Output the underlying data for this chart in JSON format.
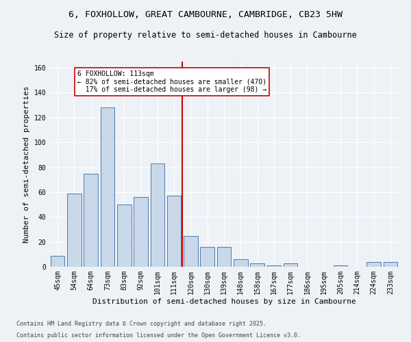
{
  "title": "6, FOXHOLLOW, GREAT CAMBOURNE, CAMBRIDGE, CB23 5HW",
  "subtitle": "Size of property relative to semi-detached houses in Cambourne",
  "xlabel": "Distribution of semi-detached houses by size in Cambourne",
  "ylabel": "Number of semi-detached properties",
  "categories": [
    "45sqm",
    "54sqm",
    "64sqm",
    "73sqm",
    "83sqm",
    "92sqm",
    "101sqm",
    "111sqm",
    "120sqm",
    "130sqm",
    "139sqm",
    "148sqm",
    "158sqm",
    "167sqm",
    "177sqm",
    "186sqm",
    "195sqm",
    "205sqm",
    "214sqm",
    "224sqm",
    "233sqm"
  ],
  "values": [
    9,
    59,
    75,
    128,
    50,
    56,
    83,
    57,
    25,
    16,
    16,
    6,
    3,
    1,
    3,
    0,
    0,
    1,
    0,
    4,
    4
  ],
  "bar_color": "#c8d8e8",
  "bar_edge_color": "#4a7ab5",
  "reference_line_x": 7.5,
  "reference_label": "6 FOXHOLLOW: 113sqm",
  "pct_smaller": 82,
  "n_smaller": 470,
  "pct_larger": 17,
  "n_larger": 98,
  "ylim": [
    0,
    165
  ],
  "yticks": [
    0,
    20,
    40,
    60,
    80,
    100,
    120,
    140,
    160
  ],
  "annotation_box_color": "#ffffff",
  "annotation_box_edge_color": "#cc0000",
  "vline_color": "#cc0000",
  "footer1": "Contains HM Land Registry data © Crown copyright and database right 2025.",
  "footer2": "Contains public sector information licensed under the Open Government Licence v3.0.",
  "bg_color": "#eef2f7",
  "grid_color": "#ffffff",
  "title_fontsize": 9.5,
  "subtitle_fontsize": 8.5,
  "axis_label_fontsize": 8,
  "tick_fontsize": 7,
  "annotation_fontsize": 7,
  "footer_fontsize": 6
}
